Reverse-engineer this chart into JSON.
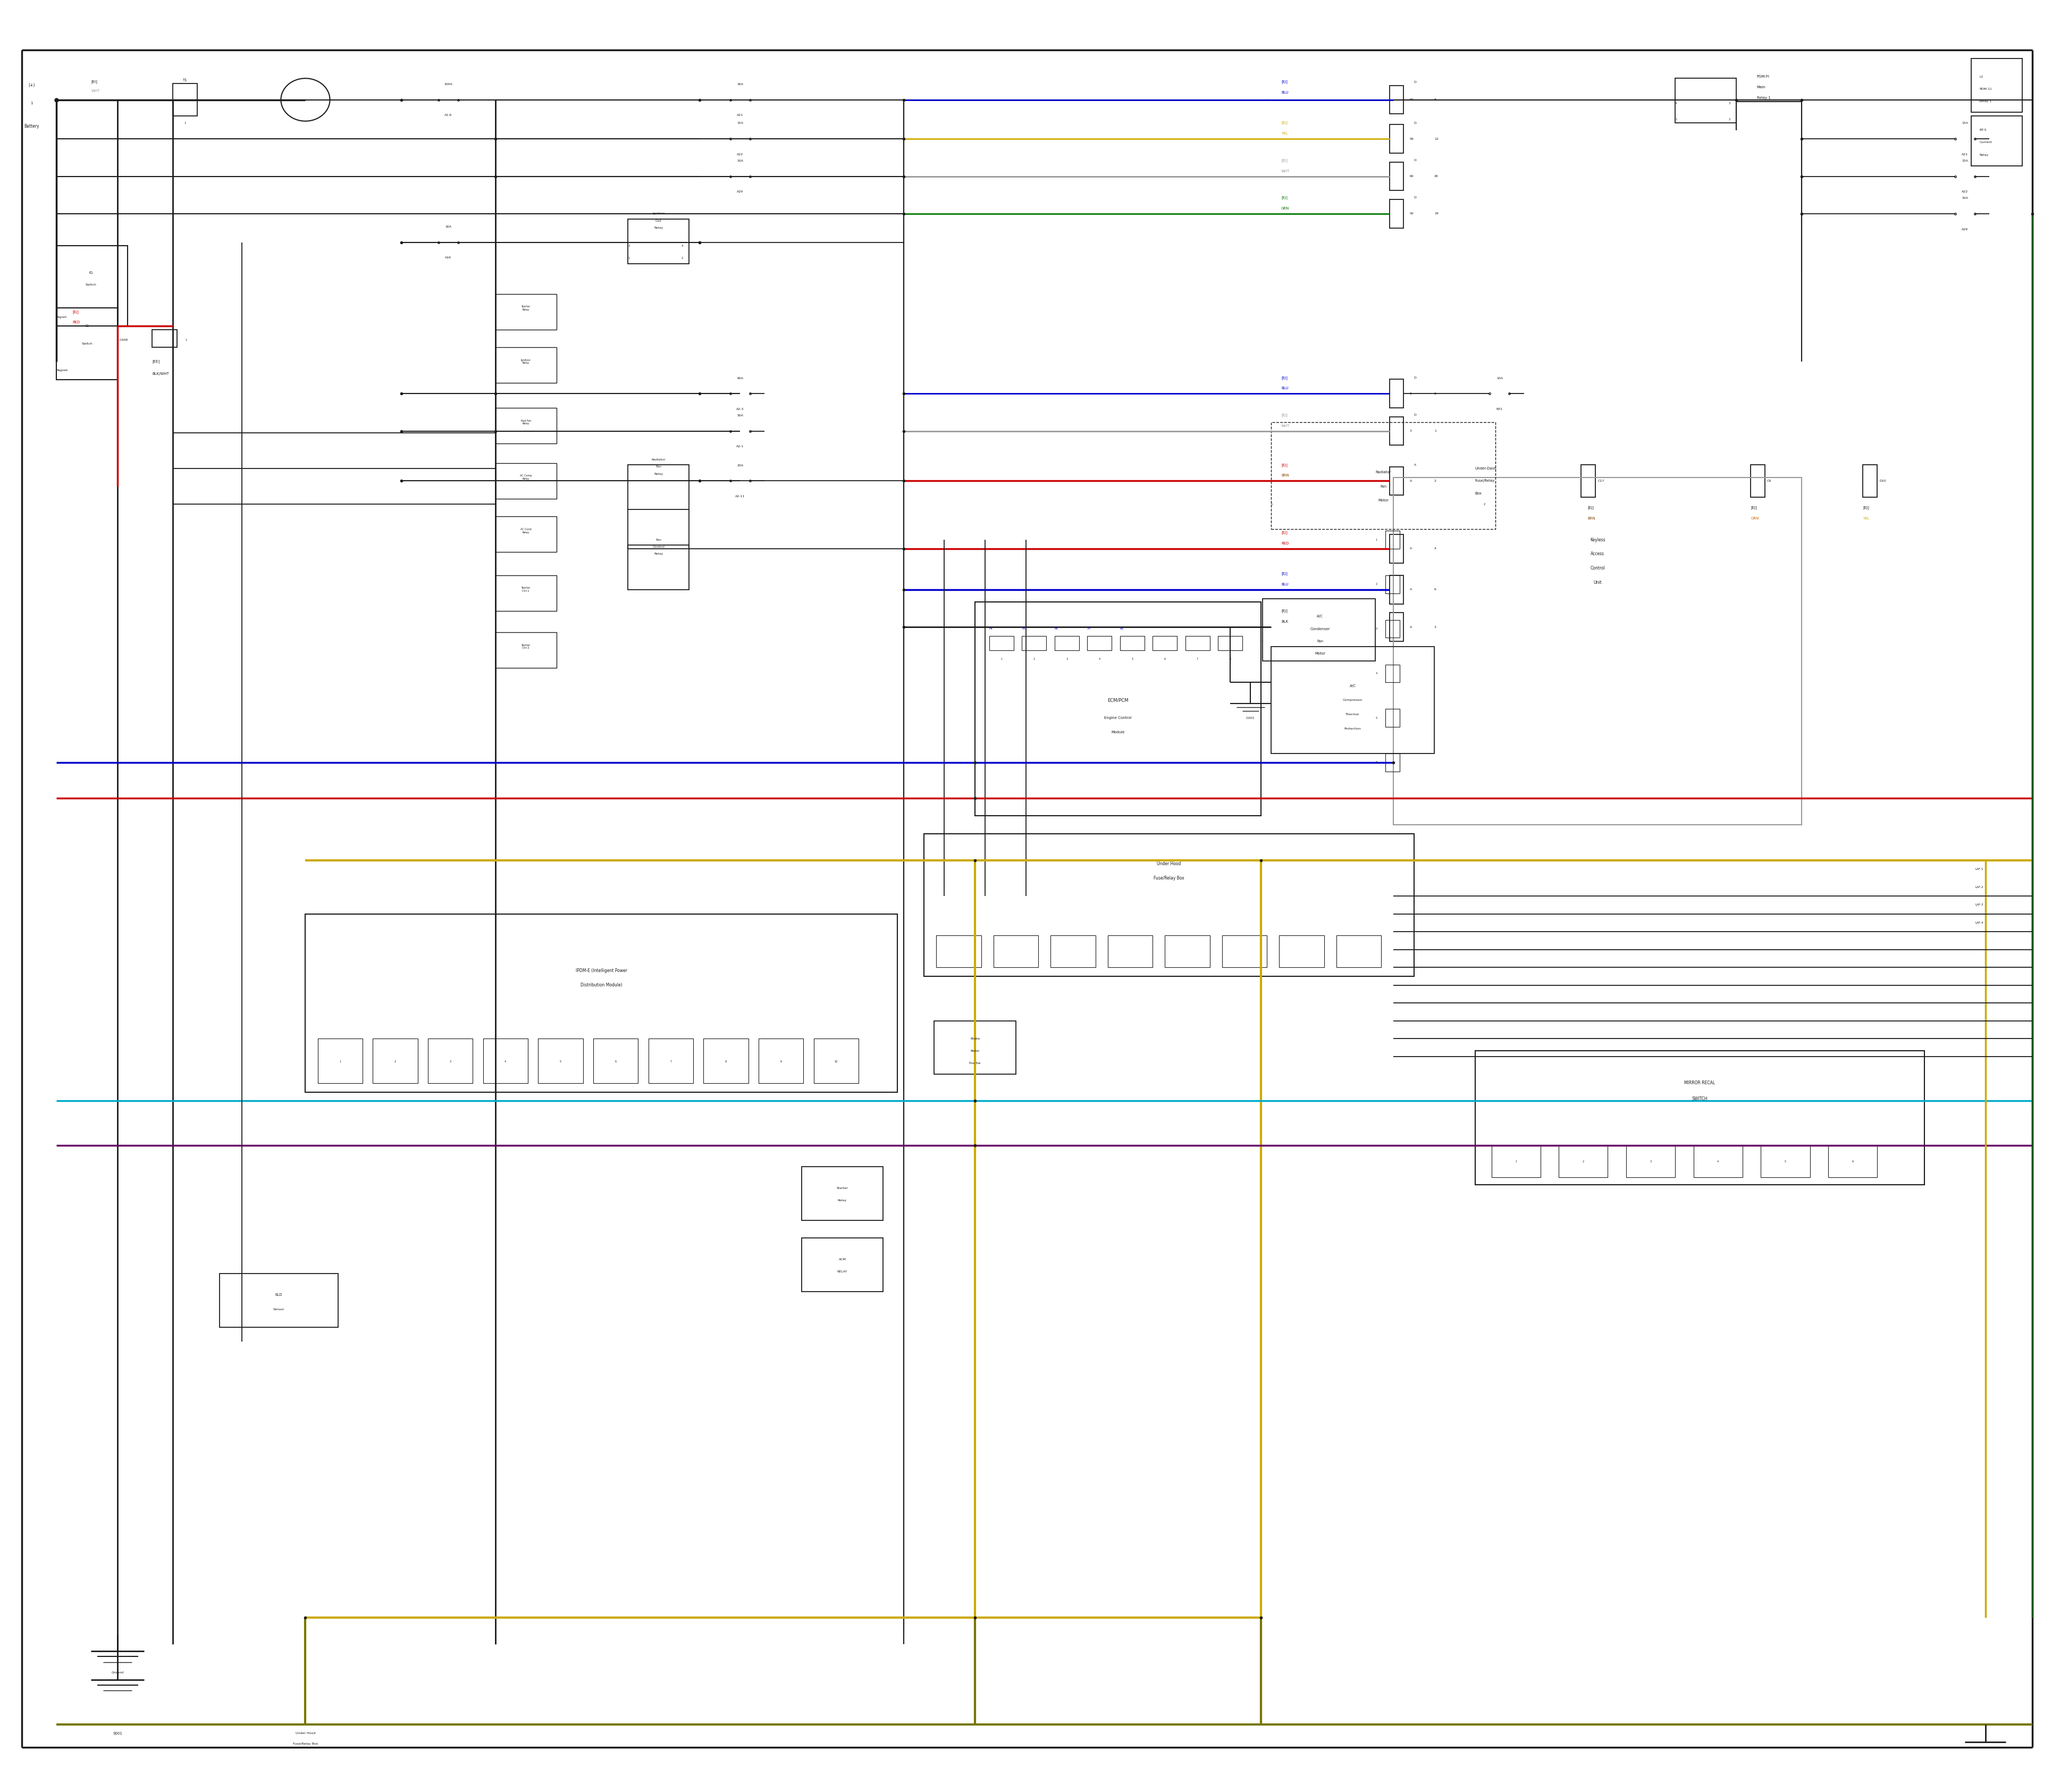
{
  "bg_color": "#ffffff",
  "fig_width": 38.4,
  "fig_height": 33.5,
  "colors": {
    "blk": "#1a1a1a",
    "red": "#cc0000",
    "blue": "#0000cc",
    "yel": "#ccaa00",
    "grn": "#007700",
    "gray": "#999999",
    "wht": "#999999",
    "brn": "#884400",
    "cyan": "#00aacc",
    "purple": "#660066",
    "olive": "#777700",
    "org": "#cc6600",
    "dkgrn": "#005500"
  },
  "notes": "All coordinates in normalized 0-1 space. x=0 left, x=1 right, y=0 bottom, y=1 top."
}
